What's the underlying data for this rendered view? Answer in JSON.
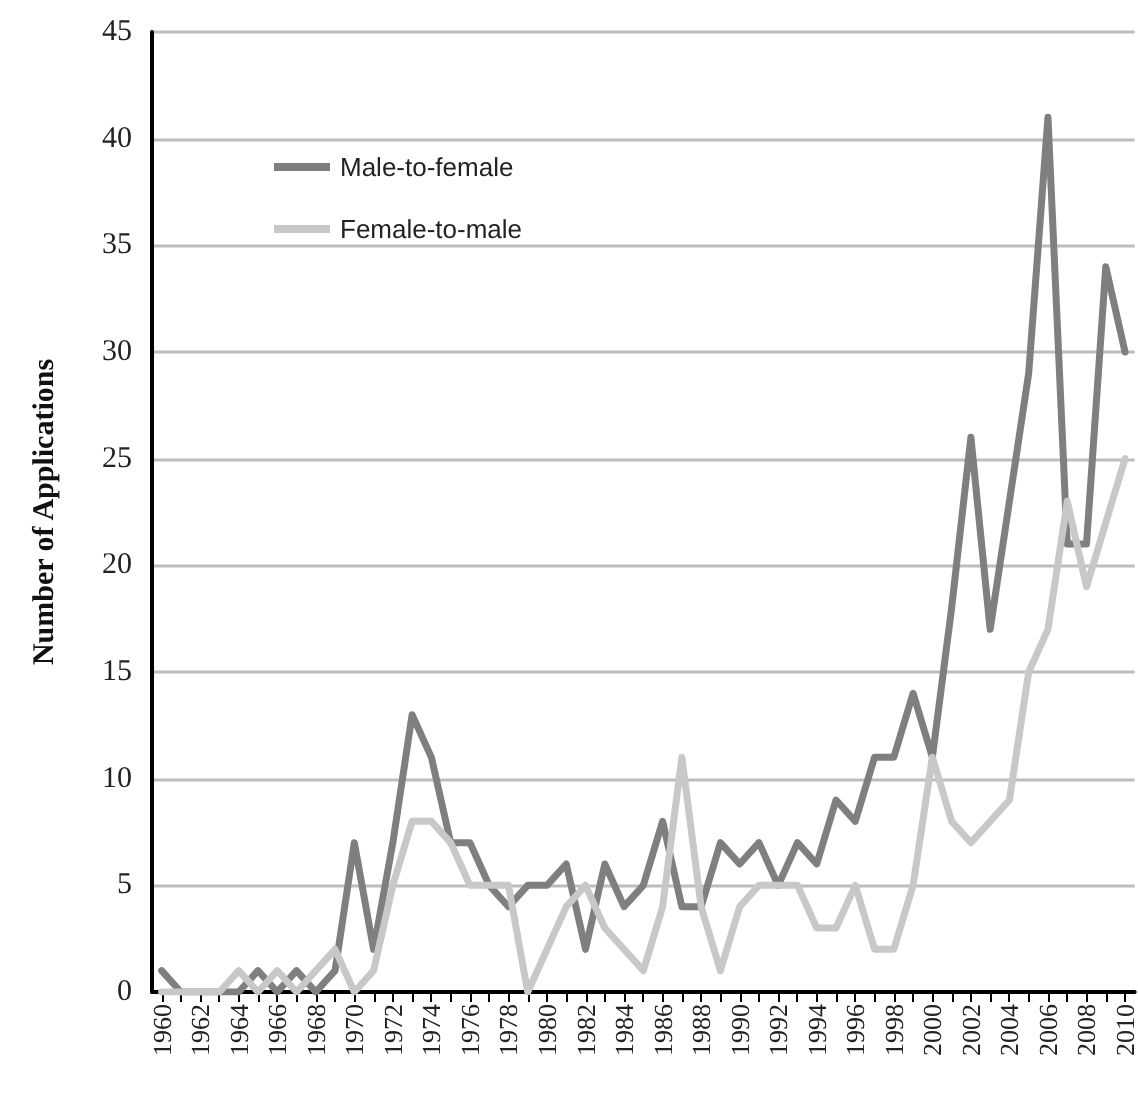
{
  "chart_data": {
    "type": "line",
    "ylabel": "Number of Applications",
    "categories": [
      "1960",
      null,
      "1962",
      null,
      "1964",
      null,
      "1966",
      null,
      "1968",
      null,
      "1970",
      null,
      "1972",
      null,
      "1974",
      null,
      "1976",
      null,
      "1978",
      null,
      "1980",
      null,
      "1982",
      null,
      "1984",
      null,
      "1986",
      null,
      "1988",
      null,
      "1990",
      null,
      "1992",
      null,
      "1994",
      null,
      "1996",
      null,
      "1998",
      null,
      "2000",
      null,
      "2002",
      null,
      "2004",
      null,
      "2006",
      null,
      "2008",
      null,
      "2010"
    ],
    "series": [
      {
        "name": "Male-to-female",
        "color": "#7f7f7f",
        "values": [
          1,
          0,
          0,
          0,
          0,
          1,
          0,
          1,
          0,
          1,
          7,
          2,
          7,
          13,
          11,
          7,
          7,
          5,
          4,
          5,
          5,
          6,
          2,
          6,
          4,
          5,
          8,
          4,
          4,
          7,
          6,
          7,
          5,
          7,
          6,
          9,
          8,
          11,
          11,
          14,
          11,
          18,
          26,
          17,
          23,
          29,
          41,
          21,
          21,
          34,
          30
        ]
      },
      {
        "name": "Female-to-male",
        "color": "#c8c8c8",
        "values": [
          0,
          0,
          0,
          0,
          1,
          0,
          1,
          0,
          1,
          2,
          0,
          1,
          5,
          8,
          8,
          7,
          5,
          5,
          5,
          0,
          2,
          4,
          5,
          3,
          2,
          1,
          4,
          11,
          4,
          1,
          4,
          5,
          5,
          5,
          3,
          3,
          5,
          2,
          2,
          5,
          11,
          8,
          7,
          8,
          9,
          15,
          17,
          23,
          19,
          22,
          25
        ]
      }
    ],
    "ylim": [
      0,
      45
    ],
    "yticks": [
      0,
      5,
      10,
      15,
      20,
      25,
      30,
      35,
      40,
      45
    ],
    "grid": "y",
    "legend": "top left",
    "marker": "none",
    "line_style": "solid"
  }
}
